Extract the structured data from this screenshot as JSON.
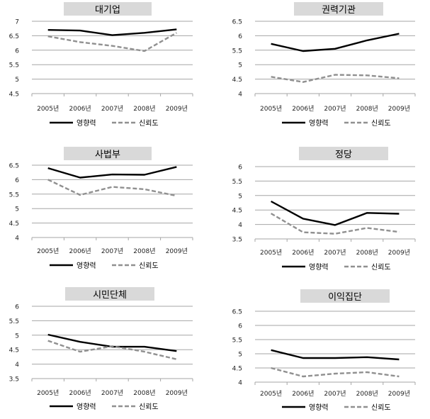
{
  "chart_data": [
    {
      "type": "line",
      "title": "대기업",
      "categories": [
        "2005년",
        "2006년",
        "2007년",
        "2008년",
        "2009년"
      ],
      "ylim": [
        4.5,
        7
      ],
      "yticks": [
        "4.5",
        "5",
        "5.5",
        "6",
        "6.5",
        "7"
      ],
      "series": [
        {
          "name": "영향력",
          "values": [
            6.7,
            6.68,
            6.52,
            6.6,
            6.72
          ],
          "style": "solid",
          "color": "#000000"
        },
        {
          "name": "신뢰도",
          "values": [
            6.48,
            6.28,
            6.15,
            5.97,
            6.6
          ],
          "style": "dashed",
          "color": "#909090"
        }
      ],
      "grid": true,
      "legend": "bottom"
    },
    {
      "type": "line",
      "title": "권력기관",
      "categories": [
        "2005년",
        "2006년",
        "2007년",
        "2008년",
        "2009년"
      ],
      "ylim": [
        4,
        6.5
      ],
      "yticks": [
        "4",
        "4.5",
        "5",
        "5.5",
        "6",
        "6.5"
      ],
      "series": [
        {
          "name": "영향력",
          "values": [
            5.72,
            5.47,
            5.55,
            5.84,
            6.07
          ],
          "style": "solid",
          "color": "#000000"
        },
        {
          "name": "신뢰도",
          "values": [
            4.58,
            4.4,
            4.65,
            4.63,
            4.53
          ],
          "style": "dashed",
          "color": "#909090"
        }
      ],
      "grid": true,
      "legend": "bottom"
    },
    {
      "type": "line",
      "title": "사법부",
      "categories": [
        "2005년",
        "2006년",
        "2007년",
        "2008년",
        "2009년"
      ],
      "ylim": [
        4,
        6.5
      ],
      "yticks": [
        "4",
        "4.5",
        "5",
        "5.5",
        "6",
        "6.5"
      ],
      "series": [
        {
          "name": "영향력",
          "values": [
            6.4,
            6.07,
            6.18,
            6.17,
            6.44
          ],
          "style": "solid",
          "color": "#000000"
        },
        {
          "name": "신뢰도",
          "values": [
            6.0,
            5.47,
            5.75,
            5.67,
            5.44
          ],
          "style": "dashed",
          "color": "#909090"
        }
      ],
      "grid": true,
      "legend": "bottom"
    },
    {
      "type": "line",
      "title": "정당",
      "categories": [
        "2005년",
        "2006년",
        "2007년",
        "2008년",
        "2009년"
      ],
      "ylim": [
        3.5,
        6
      ],
      "yticks": [
        "3.5",
        "4",
        "4.5",
        "5",
        "5.5",
        "6"
      ],
      "series": [
        {
          "name": "영향력",
          "values": [
            4.8,
            4.2,
            3.98,
            4.4,
            4.37
          ],
          "style": "solid",
          "color": "#000000"
        },
        {
          "name": "신뢰도",
          "values": [
            4.38,
            3.73,
            3.68,
            3.88,
            3.74
          ],
          "style": "dashed",
          "color": "#909090"
        }
      ],
      "grid": true,
      "legend": "bottom"
    },
    {
      "type": "line",
      "title": "시민단체",
      "categories": [
        "2005년",
        "2006년",
        "2007년",
        "2008년",
        "2009년"
      ],
      "ylim": [
        3.5,
        6
      ],
      "yticks": [
        "3.5",
        "4",
        "4.5",
        "5",
        "5.5",
        "6"
      ],
      "series": [
        {
          "name": "영향력",
          "values": [
            5.02,
            4.77,
            4.6,
            4.6,
            4.45
          ],
          "style": "solid",
          "color": "#000000"
        },
        {
          "name": "신뢰도",
          "values": [
            4.81,
            4.43,
            4.62,
            4.43,
            4.17
          ],
          "style": "dashed",
          "color": "#909090"
        }
      ],
      "grid": true,
      "legend": "bottom"
    },
    {
      "type": "line",
      "title": "이익집단",
      "categories": [
        "2005년",
        "2006년",
        "2007년",
        "2008년",
        "2009년"
      ],
      "ylim": [
        4,
        6.5
      ],
      "yticks": [
        "4",
        "4.5",
        "5",
        "5.5",
        "6",
        "6.5"
      ],
      "series": [
        {
          "name": "영향력",
          "values": [
            5.13,
            4.85,
            4.85,
            4.88,
            4.8
          ],
          "style": "solid",
          "color": "#000000"
        },
        {
          "name": "신뢰도",
          "values": [
            4.5,
            4.2,
            4.3,
            4.35,
            4.2
          ],
          "style": "dashed",
          "color": "#909090"
        }
      ],
      "grid": true,
      "legend": "bottom"
    }
  ]
}
